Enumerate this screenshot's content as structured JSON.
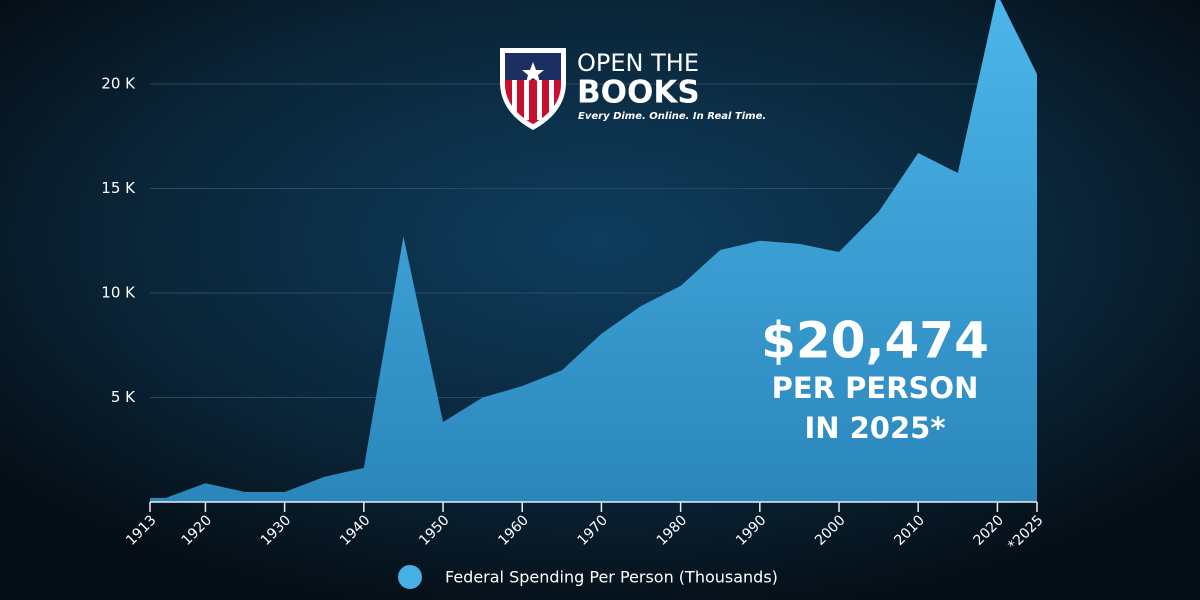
{
  "chart_data": {
    "type": "area",
    "brand": {
      "name_top": "OPEN THE",
      "name_bottom": "BOOKS",
      "tagline": "Every Dime. Online. In Real Time."
    },
    "annotation": {
      "amount": "$20,474",
      "line1": "PER PERSON",
      "line2": "IN 2025*"
    },
    "x": [
      1913,
      1915,
      1920,
      1925,
      1930,
      1935,
      1940,
      1945,
      1950,
      1955,
      1960,
      1965,
      1970,
      1975,
      1980,
      1985,
      1990,
      1995,
      2000,
      2005,
      2010,
      2015,
      2020,
      2025
    ],
    "series": [
      {
        "name": "Federal Spending Per Person (Thousands)",
        "color": "#45b0e5",
        "values": [
          200,
          200,
          900,
          480,
          480,
          1200,
          1630,
          12700,
          3830,
          5000,
          5550,
          6300,
          8050,
          9380,
          10340,
          12060,
          12500,
          12350,
          11960,
          13880,
          16700,
          15740,
          24300,
          20474
        ]
      }
    ],
    "xlim": [
      1913,
      2025
    ],
    "xticks": [
      1913,
      1920,
      1930,
      1940,
      1950,
      1960,
      1970,
      1980,
      1990,
      2000,
      2010,
      2020,
      {
        "value": 2025,
        "label": "*2025"
      }
    ],
    "ylim": [
      0,
      24000
    ],
    "yticks": [
      {
        "value": 5000,
        "label": "5 K"
      },
      {
        "value": 10000,
        "label": "10 K"
      },
      {
        "value": 15000,
        "label": "15 K"
      },
      {
        "value": 20000,
        "label": "20 K"
      }
    ],
    "grid": true
  }
}
